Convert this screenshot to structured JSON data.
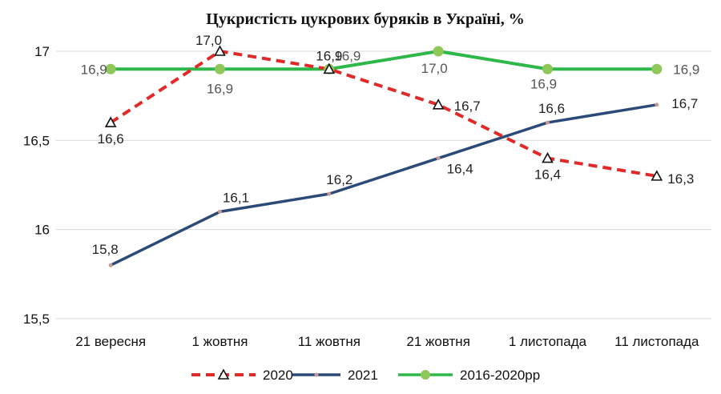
{
  "chart_data": {
    "type": "line",
    "title": "Цукристість цукрових буряків в Україні, %",
    "categories": [
      "21 вересня",
      "1 жовтня",
      "11 жовтня",
      "21 жовтня",
      "1 листопада",
      "11 листопада"
    ],
    "ylim": [
      15.5,
      17
    ],
    "yticks": [
      "15,5",
      "16",
      "16,5",
      "17"
    ],
    "ytick_values": [
      15.5,
      16,
      16.5,
      17
    ],
    "grid": "horizontal",
    "legend_position": "bottom",
    "series": [
      {
        "name": "2020",
        "values": [
          16.6,
          17.0,
          16.9,
          16.7,
          16.4,
          16.3
        ],
        "labels": [
          "16,6",
          "17,0",
          "16,9",
          "16,7",
          "16,4",
          "16,3"
        ],
        "color": "#e02a2a",
        "style": "dashed",
        "marker": "triangle"
      },
      {
        "name": "2021",
        "values": [
          15.8,
          16.1,
          16.2,
          16.4,
          16.6,
          16.7
        ],
        "labels": [
          "15,8",
          "16,1",
          "16,2",
          "16,4",
          "16,6",
          "16,7"
        ],
        "color": "#2c4a78",
        "style": "solid",
        "marker": "dot"
      },
      {
        "name": "2016-2020рр",
        "values": [
          16.9,
          16.9,
          16.9,
          17.0,
          16.9,
          16.9
        ],
        "labels": [
          "16,9",
          "16,9",
          "16,9",
          "17,0",
          "16,9",
          "16,9"
        ],
        "color": "#2eb84a",
        "style": "solid",
        "marker": "circle"
      }
    ]
  }
}
